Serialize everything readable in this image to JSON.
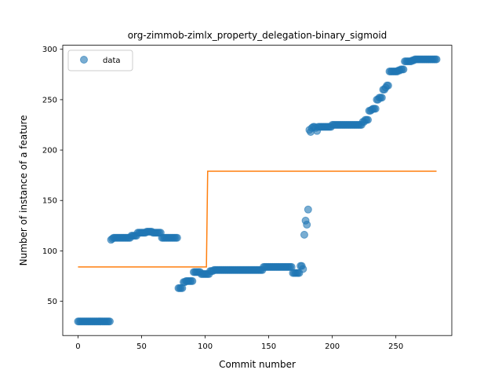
{
  "chart_data": {
    "type": "scatter",
    "title": "org-zimmob-zimlx_property_delegation-binary_sigmoid",
    "xlabel": "Commit number",
    "ylabel": "Number of instance of a feature",
    "xlim": [
      -12,
      294
    ],
    "ylim": [
      16,
      304
    ],
    "xticks": [
      0,
      50,
      100,
      150,
      200,
      250
    ],
    "yticks": [
      50,
      100,
      150,
      200,
      250,
      300
    ],
    "legend": {
      "placement": "top-left",
      "entries": [
        "data"
      ]
    },
    "colors": {
      "data": "#1f77b4",
      "fit": "#ff7f0e"
    },
    "series": [
      {
        "name": "data",
        "kind": "scatter",
        "points": [
          [
            0,
            30
          ],
          [
            1,
            30
          ],
          [
            2,
            30
          ],
          [
            3,
            30
          ],
          [
            4,
            30
          ],
          [
            5,
            30
          ],
          [
            6,
            30
          ],
          [
            7,
            30
          ],
          [
            8,
            30
          ],
          [
            9,
            30
          ],
          [
            10,
            30
          ],
          [
            11,
            30
          ],
          [
            12,
            30
          ],
          [
            13,
            30
          ],
          [
            14,
            30
          ],
          [
            15,
            30
          ],
          [
            16,
            30
          ],
          [
            17,
            30
          ],
          [
            18,
            30
          ],
          [
            19,
            30
          ],
          [
            20,
            30
          ],
          [
            21,
            30
          ],
          [
            22,
            30
          ],
          [
            23,
            30
          ],
          [
            24,
            30
          ],
          [
            25,
            30
          ],
          [
            26,
            111
          ],
          [
            27,
            112
          ],
          [
            28,
            113
          ],
          [
            29,
            113
          ],
          [
            30,
            113
          ],
          [
            31,
            113
          ],
          [
            32,
            113
          ],
          [
            33,
            113
          ],
          [
            34,
            113
          ],
          [
            35,
            113
          ],
          [
            36,
            113
          ],
          [
            37,
            113
          ],
          [
            38,
            113
          ],
          [
            39,
            113
          ],
          [
            40,
            113
          ],
          [
            41,
            113
          ],
          [
            42,
            115
          ],
          [
            43,
            115
          ],
          [
            44,
            115
          ],
          [
            45,
            115
          ],
          [
            46,
            115
          ],
          [
            47,
            118
          ],
          [
            48,
            118
          ],
          [
            49,
            118
          ],
          [
            50,
            118
          ],
          [
            51,
            118
          ],
          [
            52,
            118
          ],
          [
            53,
            118
          ],
          [
            54,
            119
          ],
          [
            55,
            119
          ],
          [
            56,
            119
          ],
          [
            57,
            119
          ],
          [
            58,
            119
          ],
          [
            59,
            118
          ],
          [
            60,
            118
          ],
          [
            61,
            118
          ],
          [
            62,
            118
          ],
          [
            63,
            118
          ],
          [
            64,
            118
          ],
          [
            65,
            118
          ],
          [
            66,
            113
          ],
          [
            67,
            113
          ],
          [
            68,
            113
          ],
          [
            69,
            113
          ],
          [
            70,
            113
          ],
          [
            71,
            113
          ],
          [
            72,
            113
          ],
          [
            73,
            113
          ],
          [
            74,
            113
          ],
          [
            75,
            113
          ],
          [
            76,
            113
          ],
          [
            77,
            113
          ],
          [
            78,
            113
          ],
          [
            79,
            63
          ],
          [
            80,
            63
          ],
          [
            81,
            63
          ],
          [
            82,
            63
          ],
          [
            83,
            69
          ],
          [
            84,
            69
          ],
          [
            85,
            70
          ],
          [
            86,
            70
          ],
          [
            87,
            70
          ],
          [
            88,
            70
          ],
          [
            89,
            70
          ],
          [
            90,
            70
          ],
          [
            91,
            79
          ],
          [
            92,
            79
          ],
          [
            93,
            79
          ],
          [
            94,
            79
          ],
          [
            95,
            79
          ],
          [
            96,
            79
          ],
          [
            97,
            77
          ],
          [
            98,
            77
          ],
          [
            99,
            77
          ],
          [
            100,
            77
          ],
          [
            101,
            77
          ],
          [
            102,
            77
          ],
          [
            103,
            77
          ],
          [
            104,
            80
          ],
          [
            105,
            80
          ],
          [
            106,
            80
          ],
          [
            107,
            81
          ],
          [
            108,
            81
          ],
          [
            109,
            81
          ],
          [
            110,
            81
          ],
          [
            111,
            81
          ],
          [
            112,
            81
          ],
          [
            113,
            81
          ],
          [
            114,
            81
          ],
          [
            115,
            81
          ],
          [
            116,
            81
          ],
          [
            117,
            81
          ],
          [
            118,
            81
          ],
          [
            119,
            81
          ],
          [
            120,
            81
          ],
          [
            121,
            81
          ],
          [
            122,
            81
          ],
          [
            123,
            81
          ],
          [
            124,
            81
          ],
          [
            125,
            81
          ],
          [
            126,
            81
          ],
          [
            127,
            81
          ],
          [
            128,
            81
          ],
          [
            129,
            81
          ],
          [
            130,
            81
          ],
          [
            131,
            81
          ],
          [
            132,
            81
          ],
          [
            133,
            81
          ],
          [
            134,
            81
          ],
          [
            135,
            81
          ],
          [
            136,
            81
          ],
          [
            137,
            81
          ],
          [
            138,
            81
          ],
          [
            139,
            81
          ],
          [
            140,
            81
          ],
          [
            141,
            81
          ],
          [
            142,
            81
          ],
          [
            143,
            81
          ],
          [
            144,
            81
          ],
          [
            145,
            81
          ],
          [
            146,
            84
          ],
          [
            147,
            84
          ],
          [
            148,
            84
          ],
          [
            149,
            84
          ],
          [
            150,
            84
          ],
          [
            151,
            84
          ],
          [
            152,
            84
          ],
          [
            153,
            84
          ],
          [
            154,
            84
          ],
          [
            155,
            84
          ],
          [
            156,
            84
          ],
          [
            157,
            84
          ],
          [
            158,
            84
          ],
          [
            159,
            84
          ],
          [
            160,
            84
          ],
          [
            161,
            84
          ],
          [
            162,
            84
          ],
          [
            163,
            84
          ],
          [
            164,
            84
          ],
          [
            165,
            84
          ],
          [
            166,
            84
          ],
          [
            167,
            84
          ],
          [
            168,
            84
          ],
          [
            169,
            78
          ],
          [
            170,
            78
          ],
          [
            171,
            78
          ],
          [
            172,
            78
          ],
          [
            173,
            78
          ],
          [
            174,
            78
          ],
          [
            175,
            85
          ],
          [
            176,
            85
          ],
          [
            177,
            82
          ],
          [
            178,
            116
          ],
          [
            179,
            130
          ],
          [
            180,
            126
          ],
          [
            181,
            141
          ],
          [
            182,
            220
          ],
          [
            183,
            218
          ],
          [
            184,
            222
          ],
          [
            185,
            223
          ],
          [
            186,
            223
          ],
          [
            187,
            222
          ],
          [
            188,
            219
          ],
          [
            189,
            223
          ],
          [
            190,
            223
          ],
          [
            191,
            223
          ],
          [
            192,
            223
          ],
          [
            193,
            223
          ],
          [
            194,
            223
          ],
          [
            195,
            223
          ],
          [
            196,
            223
          ],
          [
            197,
            223
          ],
          [
            198,
            223
          ],
          [
            199,
            223
          ],
          [
            200,
            225
          ],
          [
            201,
            225
          ],
          [
            202,
            225
          ],
          [
            203,
            225
          ],
          [
            204,
            225
          ],
          [
            205,
            225
          ],
          [
            206,
            225
          ],
          [
            207,
            225
          ],
          [
            208,
            225
          ],
          [
            209,
            225
          ],
          [
            210,
            225
          ],
          [
            211,
            225
          ],
          [
            212,
            225
          ],
          [
            213,
            225
          ],
          [
            214,
            225
          ],
          [
            215,
            225
          ],
          [
            216,
            225
          ],
          [
            217,
            225
          ],
          [
            218,
            225
          ],
          [
            219,
            225
          ],
          [
            220,
            225
          ],
          [
            221,
            225
          ],
          [
            222,
            225
          ],
          [
            223,
            225
          ],
          [
            224,
            228
          ],
          [
            225,
            228
          ],
          [
            226,
            230
          ],
          [
            227,
            230
          ],
          [
            228,
            230
          ],
          [
            229,
            239
          ],
          [
            230,
            239
          ],
          [
            231,
            240
          ],
          [
            232,
            241
          ],
          [
            233,
            241
          ],
          [
            234,
            241
          ],
          [
            235,
            250
          ],
          [
            236,
            250
          ],
          [
            237,
            252
          ],
          [
            238,
            252
          ],
          [
            239,
            252
          ],
          [
            240,
            260
          ],
          [
            241,
            260
          ],
          [
            242,
            262
          ],
          [
            243,
            264
          ],
          [
            244,
            264
          ],
          [
            245,
            278
          ],
          [
            246,
            278
          ],
          [
            247,
            278
          ],
          [
            248,
            278
          ],
          [
            249,
            278
          ],
          [
            250,
            278
          ],
          [
            251,
            278
          ],
          [
            252,
            279
          ],
          [
            253,
            279
          ],
          [
            254,
            280
          ],
          [
            255,
            280
          ],
          [
            256,
            280
          ],
          [
            257,
            288
          ],
          [
            258,
            288
          ],
          [
            259,
            288
          ],
          [
            260,
            288
          ],
          [
            261,
            288
          ],
          [
            262,
            288
          ],
          [
            263,
            289
          ],
          [
            264,
            289
          ],
          [
            265,
            290
          ],
          [
            266,
            290
          ],
          [
            267,
            290
          ],
          [
            268,
            290
          ],
          [
            269,
            290
          ],
          [
            270,
            290
          ],
          [
            271,
            290
          ],
          [
            272,
            290
          ],
          [
            273,
            290
          ],
          [
            274,
            290
          ],
          [
            275,
            290
          ],
          [
            276,
            290
          ],
          [
            277,
            290
          ],
          [
            278,
            290
          ],
          [
            279,
            290
          ],
          [
            280,
            290
          ],
          [
            281,
            290
          ],
          [
            282,
            290
          ]
        ]
      },
      {
        "kind": "line",
        "points": [
          [
            0,
            84
          ],
          [
            101,
            84
          ],
          [
            102,
            179
          ],
          [
            282,
            179
          ]
        ]
      }
    ]
  }
}
